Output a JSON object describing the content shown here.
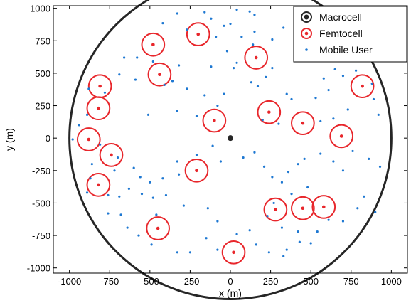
{
  "chart_data": {
    "type": "scatter",
    "xlabel": "x (m)",
    "ylabel": "y (m)",
    "xlim": [
      -1100,
      1100
    ],
    "ylim": [
      -1040,
      1020
    ],
    "xticks": [
      -1000,
      -750,
      -500,
      -250,
      0,
      250,
      500,
      750,
      1000
    ],
    "yticks": [
      -1000,
      -750,
      -500,
      -250,
      0,
      250,
      500,
      750,
      1000
    ],
    "xtick_labels": [
      "-1000",
      "-750",
      "-500",
      "-250",
      "0",
      "250",
      "500",
      "750",
      "1000"
    ],
    "ytick_labels": [
      "-1000",
      "-750",
      "-500",
      "-250",
      "0",
      "250",
      "500",
      "750",
      "1000"
    ],
    "grid": false,
    "legend_position": "top-right",
    "cell_radius": 1000,
    "femtocell_radius": 70,
    "colors": {
      "macro": "#262626",
      "femto": "#e8262b",
      "user": "#1e78d2"
    },
    "series": [
      {
        "name": "Macrocell",
        "points": [
          [
            0,
            0
          ]
        ]
      },
      {
        "name": "Femtocell",
        "points": [
          [
            -200,
            800
          ],
          [
            -480,
            720
          ],
          [
            160,
            620
          ],
          [
            -440,
            490
          ],
          [
            -810,
            400
          ],
          [
            820,
            400
          ],
          [
            -820,
            230
          ],
          [
            240,
            200
          ],
          [
            -100,
            135
          ],
          [
            450,
            115
          ],
          [
            690,
            15
          ],
          [
            -880,
            -10
          ],
          [
            -740,
            -130
          ],
          [
            -210,
            -250
          ],
          [
            -820,
            -360
          ],
          [
            580,
            -530
          ],
          [
            450,
            -540
          ],
          [
            280,
            -550
          ],
          [
            -450,
            -695
          ],
          [
            20,
            -880
          ]
        ]
      },
      {
        "name": "Mobile User",
        "points": [
          [
            -270,
            835
          ],
          [
            -420,
            885
          ],
          [
            -330,
            960
          ],
          [
            -160,
            970
          ],
          [
            -120,
            920
          ],
          [
            -40,
            865
          ],
          [
            0,
            880
          ],
          [
            40,
            990
          ],
          [
            120,
            975
          ],
          [
            150,
            950
          ],
          [
            -90,
            780
          ],
          [
            70,
            780
          ],
          [
            140,
            720
          ],
          [
            260,
            760
          ],
          [
            330,
            850
          ],
          [
            150,
            820
          ],
          [
            -20,
            670
          ],
          [
            -580,
            620
          ],
          [
            -660,
            620
          ],
          [
            -480,
            590
          ],
          [
            -320,
            560
          ],
          [
            -120,
            550
          ],
          [
            40,
            580
          ],
          [
            260,
            540
          ],
          [
            220,
            470
          ],
          [
            20,
            540
          ],
          [
            -360,
            440
          ],
          [
            -780,
            350
          ],
          [
            -880,
            380
          ],
          [
            -690,
            490
          ],
          [
            -590,
            450
          ],
          [
            -410,
            410
          ],
          [
            -270,
            380
          ],
          [
            -160,
            330
          ],
          [
            -40,
            340
          ],
          [
            130,
            430
          ],
          [
            170,
            400
          ],
          [
            350,
            340
          ],
          [
            530,
            310
          ],
          [
            610,
            370
          ],
          [
            580,
            460
          ],
          [
            700,
            480
          ],
          [
            780,
            520
          ],
          [
            650,
            530
          ],
          [
            880,
            420
          ],
          [
            890,
            300
          ],
          [
            920,
            180
          ],
          [
            730,
            220
          ],
          [
            640,
            150
          ],
          [
            560,
            130
          ],
          [
            380,
            300
          ],
          [
            300,
            110
          ],
          [
            200,
            140
          ],
          [
            -80,
            250
          ],
          [
            -210,
            170
          ],
          [
            -330,
            210
          ],
          [
            -510,
            180
          ],
          [
            -890,
            180
          ],
          [
            -940,
            100
          ],
          [
            -980,
            -10
          ],
          [
            -810,
            -50
          ],
          [
            -700,
            -150
          ],
          [
            -860,
            -200
          ],
          [
            -720,
            -250
          ],
          [
            -600,
            -230
          ],
          [
            -560,
            -300
          ],
          [
            -500,
            -340
          ],
          [
            -420,
            -310
          ],
          [
            -320,
            -280
          ],
          [
            -330,
            -180
          ],
          [
            -210,
            -130
          ],
          [
            -110,
            -60
          ],
          [
            -60,
            -180
          ],
          [
            80,
            -150
          ],
          [
            150,
            -110
          ],
          [
            210,
            -220
          ],
          [
            260,
            -300
          ],
          [
            320,
            -340
          ],
          [
            360,
            -260
          ],
          [
            420,
            -200
          ],
          [
            460,
            -160
          ],
          [
            560,
            -120
          ],
          [
            640,
            -180
          ],
          [
            700,
            -250
          ],
          [
            760,
            -100
          ],
          [
            860,
            -160
          ],
          [
            930,
            -220
          ],
          [
            480,
            -380
          ],
          [
            380,
            -430
          ],
          [
            270,
            -500
          ],
          [
            230,
            -600
          ],
          [
            320,
            -690
          ],
          [
            420,
            -720
          ],
          [
            540,
            -720
          ],
          [
            610,
            -630
          ],
          [
            700,
            -640
          ],
          [
            790,
            -540
          ],
          [
            830,
            -450
          ],
          [
            900,
            -570
          ],
          [
            -870,
            -310
          ],
          [
            -890,
            -420
          ],
          [
            -760,
            -440
          ],
          [
            -690,
            -450
          ],
          [
            -630,
            -390
          ],
          [
            -550,
            -430
          ],
          [
            -480,
            -460
          ],
          [
            -400,
            -440
          ],
          [
            -290,
            -520
          ],
          [
            -140,
            -540
          ],
          [
            -80,
            -640
          ],
          [
            -150,
            -770
          ],
          [
            -80,
            -860
          ],
          [
            40,
            -740
          ],
          [
            120,
            -710
          ],
          [
            160,
            -820
          ],
          [
            240,
            -880
          ],
          [
            350,
            -860
          ],
          [
            430,
            -800
          ],
          [
            500,
            -810
          ],
          [
            330,
            -910
          ],
          [
            -330,
            -880
          ],
          [
            -250,
            -880
          ],
          [
            -460,
            -590
          ],
          [
            -680,
            -590
          ],
          [
            -760,
            -580
          ],
          [
            -640,
            -690
          ],
          [
            -570,
            -750
          ],
          [
            -490,
            -820
          ]
        ]
      }
    ]
  }
}
